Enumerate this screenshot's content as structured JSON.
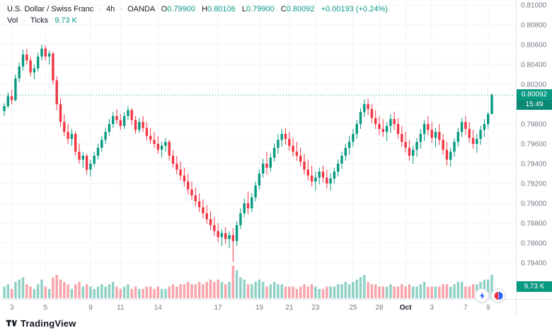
{
  "legend": {
    "symbol": "U.S. Dollar / Swiss Franc",
    "sep": "·",
    "interval": "4h",
    "exchange": "OANDA",
    "ohlc": {
      "o_label": "O",
      "o": "0.79900",
      "h_label": "H",
      "h": "0.80106",
      "l_label": "L",
      "l": "0.79900",
      "c_label": "C",
      "c": "0.80092",
      "change": "+0.00193 (+0.24%)"
    },
    "volume_row": {
      "label": "Vol",
      "unit": "Ticks",
      "value": "9.73 K"
    }
  },
  "badges": {
    "price": "0.80092",
    "countdown": "15:49",
    "volume": "9.73 K"
  },
  "footer": {
    "brand": "TradingView"
  },
  "colors": {
    "up": "#089981",
    "down": "#f23645",
    "vol_up": "rgba(8,153,129,0.45)",
    "vol_down": "rgba(242,54,69,0.45)",
    "grid": "#f0f3fa",
    "axis_text": "#787b86",
    "separator": "#e0e3eb",
    "price_line": "#089981"
  },
  "price_axis": {
    "labels": [
      "0.81000",
      "0.80800",
      "0.80600",
      "0.80400",
      "0.80200",
      "0.80000",
      "0.79800",
      "0.79600",
      "0.79400",
      "0.79200",
      "0.79000",
      "0.78800",
      "0.78600",
      "0.78400"
    ]
  },
  "time_axis": {
    "ticks": [
      {
        "label": "3",
        "index": 2,
        "major": false
      },
      {
        "label": "5",
        "index": 11,
        "major": false
      },
      {
        "label": "9",
        "index": 23,
        "major": false
      },
      {
        "label": "11",
        "index": 31,
        "major": false
      },
      {
        "label": "14",
        "index": 41,
        "major": false
      },
      {
        "label": "17",
        "index": 57,
        "major": false
      },
      {
        "label": "19",
        "index": 68,
        "major": false
      },
      {
        "label": "21",
        "index": 76,
        "major": false
      },
      {
        "label": "23",
        "index": 83,
        "major": false
      },
      {
        "label": "25",
        "index": 93,
        "major": false
      },
      {
        "label": "28",
        "index": 100,
        "major": false
      },
      {
        "label": "Oct",
        "index": 107,
        "major": true
      },
      {
        "label": "3",
        "index": 114,
        "major": false
      },
      {
        "label": "7",
        "index": 123,
        "major": false
      },
      {
        "label": "9",
        "index": 129,
        "major": false
      }
    ]
  },
  "chart_data": {
    "type": "candlestick+volume",
    "title": "U.S. Dollar / Swiss Franc",
    "exchange": "OANDA",
    "interval": "4h",
    "volume_units": "Ticks (K)",
    "price_range": [
      0.784,
      0.81
    ],
    "last": {
      "open": 0.799,
      "high": 0.80106,
      "low": 0.799,
      "close": 0.80092,
      "change": "+0.00193 (+0.24%)",
      "volume_k": 9.73
    },
    "candles": [
      [
        0.7993,
        0.8001,
        0.7988,
        0.7998,
        5
      ],
      [
        0.7998,
        0.8012,
        0.7996,
        0.8008,
        6
      ],
      [
        0.8008,
        0.8015,
        0.8,
        0.8004,
        4
      ],
      [
        0.8004,
        0.803,
        0.8003,
        0.8026,
        7
      ],
      [
        0.8026,
        0.8042,
        0.8022,
        0.8038,
        8
      ],
      [
        0.8038,
        0.8055,
        0.8034,
        0.805,
        9
      ],
      [
        0.805,
        0.8056,
        0.804,
        0.8044,
        6
      ],
      [
        0.8044,
        0.8048,
        0.8028,
        0.8032,
        5
      ],
      [
        0.8032,
        0.804,
        0.8025,
        0.8036,
        4
      ],
      [
        0.8036,
        0.8052,
        0.8033,
        0.8048,
        6
      ],
      [
        0.8048,
        0.806,
        0.8044,
        0.8056,
        8
      ],
      [
        0.8056,
        0.8059,
        0.8044,
        0.8048,
        5
      ],
      [
        0.8048,
        0.8054,
        0.804,
        0.8051,
        4
      ],
      [
        0.8051,
        0.8053,
        0.802,
        0.8024,
        9
      ],
      [
        0.8024,
        0.8028,
        0.7994,
        0.8,
        10
      ],
      [
        0.8,
        0.8006,
        0.7977,
        0.7982,
        8
      ],
      [
        0.7982,
        0.799,
        0.7968,
        0.7972,
        7
      ],
      [
        0.7972,
        0.798,
        0.796,
        0.7965,
        6
      ],
      [
        0.7965,
        0.7975,
        0.7958,
        0.797,
        4
      ],
      [
        0.797,
        0.7973,
        0.7948,
        0.7952,
        6
      ],
      [
        0.7952,
        0.796,
        0.794,
        0.7944,
        7
      ],
      [
        0.7944,
        0.7952,
        0.7936,
        0.7948,
        5
      ],
      [
        0.7948,
        0.795,
        0.7929,
        0.7934,
        6
      ],
      [
        0.7934,
        0.7944,
        0.7927,
        0.794,
        5
      ],
      [
        0.794,
        0.7952,
        0.7937,
        0.7948,
        4
      ],
      [
        0.7948,
        0.796,
        0.7944,
        0.7956,
        5
      ],
      [
        0.7956,
        0.7968,
        0.7952,
        0.7964,
        6
      ],
      [
        0.7964,
        0.7976,
        0.796,
        0.7972,
        5
      ],
      [
        0.7972,
        0.7985,
        0.7968,
        0.798,
        6
      ],
      [
        0.798,
        0.7992,
        0.7976,
        0.7988,
        7
      ],
      [
        0.7988,
        0.7995,
        0.798,
        0.7984,
        5
      ],
      [
        0.7984,
        0.799,
        0.7974,
        0.7978,
        4
      ],
      [
        0.7978,
        0.7992,
        0.7975,
        0.7988,
        5
      ],
      [
        0.7988,
        0.7998,
        0.7984,
        0.7994,
        6
      ],
      [
        0.7994,
        0.7996,
        0.7979,
        0.7984,
        4
      ],
      [
        0.7984,
        0.7988,
        0.797,
        0.7974,
        5
      ],
      [
        0.7974,
        0.7986,
        0.7971,
        0.7982,
        4
      ],
      [
        0.7982,
        0.7988,
        0.7972,
        0.7976,
        4
      ],
      [
        0.7976,
        0.7982,
        0.7963,
        0.7968,
        5
      ],
      [
        0.7968,
        0.7976,
        0.796,
        0.7964,
        5
      ],
      [
        0.7964,
        0.7972,
        0.7956,
        0.796,
        4
      ],
      [
        0.796,
        0.7968,
        0.795,
        0.7954,
        5
      ],
      [
        0.7954,
        0.7962,
        0.7946,
        0.7958,
        4
      ],
      [
        0.7958,
        0.7966,
        0.7952,
        0.7962,
        4
      ],
      [
        0.7962,
        0.7964,
        0.7943,
        0.7948,
        5
      ],
      [
        0.7948,
        0.7954,
        0.7936,
        0.794,
        6
      ],
      [
        0.794,
        0.7948,
        0.7929,
        0.7934,
        5
      ],
      [
        0.7934,
        0.7942,
        0.7923,
        0.7928,
        6
      ],
      [
        0.7928,
        0.7936,
        0.7917,
        0.7922,
        6
      ],
      [
        0.7922,
        0.793,
        0.7909,
        0.7914,
        7
      ],
      [
        0.7914,
        0.7922,
        0.7903,
        0.7908,
        6
      ],
      [
        0.7908,
        0.7916,
        0.7897,
        0.7902,
        6
      ],
      [
        0.7902,
        0.791,
        0.7891,
        0.7896,
        7
      ],
      [
        0.7896,
        0.7904,
        0.7885,
        0.789,
        6
      ],
      [
        0.789,
        0.7898,
        0.7879,
        0.7884,
        7
      ],
      [
        0.7884,
        0.7892,
        0.7873,
        0.7878,
        8
      ],
      [
        0.7878,
        0.7886,
        0.7867,
        0.7872,
        7
      ],
      [
        0.7872,
        0.788,
        0.7861,
        0.7866,
        8
      ],
      [
        0.7866,
        0.7874,
        0.7857,
        0.787,
        7
      ],
      [
        0.787,
        0.7876,
        0.7859,
        0.7864,
        6
      ],
      [
        0.7864,
        0.7872,
        0.7855,
        0.7868,
        7
      ],
      [
        0.7868,
        0.7875,
        0.7841,
        0.7862,
        14
      ],
      [
        0.7862,
        0.7882,
        0.7857,
        0.7878,
        12
      ],
      [
        0.7878,
        0.7895,
        0.7874,
        0.789,
        9
      ],
      [
        0.789,
        0.7905,
        0.7886,
        0.79,
        8
      ],
      [
        0.79,
        0.7912,
        0.7889,
        0.7895,
        6
      ],
      [
        0.7895,
        0.791,
        0.7891,
        0.7906,
        6
      ],
      [
        0.7906,
        0.7922,
        0.7902,
        0.7918,
        7
      ],
      [
        0.7918,
        0.7934,
        0.7914,
        0.793,
        8
      ],
      [
        0.793,
        0.7945,
        0.7926,
        0.794,
        7
      ],
      [
        0.794,
        0.7952,
        0.7929,
        0.7936,
        5
      ],
      [
        0.7936,
        0.795,
        0.7932,
        0.7946,
        6
      ],
      [
        0.7946,
        0.796,
        0.7942,
        0.7956,
        7
      ],
      [
        0.7956,
        0.797,
        0.795,
        0.7964,
        6
      ],
      [
        0.7964,
        0.7975,
        0.7957,
        0.797,
        6
      ],
      [
        0.797,
        0.7976,
        0.7959,
        0.7965,
        5
      ],
      [
        0.7965,
        0.7972,
        0.7953,
        0.7958,
        5
      ],
      [
        0.7958,
        0.7966,
        0.7947,
        0.7952,
        5
      ],
      [
        0.7952,
        0.7962,
        0.7943,
        0.7948,
        4
      ],
      [
        0.7948,
        0.7956,
        0.7937,
        0.7942,
        5
      ],
      [
        0.7942,
        0.795,
        0.7929,
        0.7934,
        6
      ],
      [
        0.7934,
        0.7944,
        0.7923,
        0.7928,
        5
      ],
      [
        0.7928,
        0.7938,
        0.7917,
        0.7922,
        6
      ],
      [
        0.7922,
        0.7932,
        0.7913,
        0.7926,
        5
      ],
      [
        0.7926,
        0.7936,
        0.7919,
        0.7932,
        4
      ],
      [
        0.7932,
        0.7938,
        0.7921,
        0.7926,
        4
      ],
      [
        0.7926,
        0.7934,
        0.7915,
        0.792,
        5
      ],
      [
        0.792,
        0.793,
        0.7913,
        0.7925,
        5
      ],
      [
        0.7925,
        0.7936,
        0.792,
        0.7932,
        5
      ],
      [
        0.7932,
        0.7944,
        0.7927,
        0.794,
        6
      ],
      [
        0.794,
        0.7952,
        0.7935,
        0.7948,
        6
      ],
      [
        0.7948,
        0.796,
        0.7943,
        0.7956,
        7
      ],
      [
        0.7956,
        0.7968,
        0.7949,
        0.7962,
        6
      ],
      [
        0.7962,
        0.7975,
        0.7957,
        0.797,
        7
      ],
      [
        0.797,
        0.7984,
        0.7965,
        0.798,
        8
      ],
      [
        0.798,
        0.7996,
        0.7975,
        0.7992,
        9
      ],
      [
        0.7992,
        0.8005,
        0.7987,
        0.8,
        10
      ],
      [
        0.8,
        0.8006,
        0.7989,
        0.7995,
        7
      ],
      [
        0.7995,
        0.8,
        0.7981,
        0.7986,
        6
      ],
      [
        0.7986,
        0.7994,
        0.7975,
        0.798,
        6
      ],
      [
        0.798,
        0.7988,
        0.7969,
        0.7975,
        5
      ],
      [
        0.7975,
        0.7985,
        0.7967,
        0.7972,
        5
      ],
      [
        0.7972,
        0.7982,
        0.7963,
        0.7978,
        5
      ],
      [
        0.7978,
        0.799,
        0.7971,
        0.7985,
        6
      ],
      [
        0.7985,
        0.7992,
        0.7974,
        0.798,
        5
      ],
      [
        0.798,
        0.7986,
        0.7965,
        0.797,
        5
      ],
      [
        0.797,
        0.7978,
        0.7957,
        0.7962,
        6
      ],
      [
        0.7962,
        0.7972,
        0.7951,
        0.7956,
        5
      ],
      [
        0.7956,
        0.7964,
        0.7943,
        0.7948,
        6
      ],
      [
        0.7948,
        0.7958,
        0.794,
        0.7954,
        5
      ],
      [
        0.7954,
        0.7966,
        0.7947,
        0.7962,
        5
      ],
      [
        0.7962,
        0.7975,
        0.7955,
        0.797,
        6
      ],
      [
        0.797,
        0.7984,
        0.7963,
        0.798,
        7
      ],
      [
        0.798,
        0.7988,
        0.7969,
        0.7974,
        5
      ],
      [
        0.7974,
        0.7982,
        0.7961,
        0.7966,
        5
      ],
      [
        0.7966,
        0.7976,
        0.7957,
        0.7972,
        5
      ],
      [
        0.7972,
        0.798,
        0.7959,
        0.7964,
        5
      ],
      [
        0.7964,
        0.797,
        0.7949,
        0.7954,
        6
      ],
      [
        0.7954,
        0.7962,
        0.7938,
        0.7944,
        6
      ],
      [
        0.7944,
        0.7956,
        0.7937,
        0.7952,
        5
      ],
      [
        0.7952,
        0.7966,
        0.7947,
        0.7962,
        6
      ],
      [
        0.7962,
        0.7976,
        0.7957,
        0.7972,
        7
      ],
      [
        0.7972,
        0.7986,
        0.7967,
        0.7982,
        7
      ],
      [
        0.7982,
        0.7988,
        0.7969,
        0.7975,
        5
      ],
      [
        0.7975,
        0.7982,
        0.7961,
        0.7966,
        5
      ],
      [
        0.7966,
        0.7974,
        0.7955,
        0.796,
        6
      ],
      [
        0.796,
        0.797,
        0.7951,
        0.7965,
        6
      ],
      [
        0.7965,
        0.7978,
        0.7959,
        0.7974,
        7
      ],
      [
        0.7974,
        0.7985,
        0.7967,
        0.798,
        8
      ],
      [
        0.798,
        0.7992,
        0.7975,
        0.799,
        8
      ],
      [
        0.799,
        0.80106,
        0.799,
        0.80092,
        10
      ]
    ]
  }
}
